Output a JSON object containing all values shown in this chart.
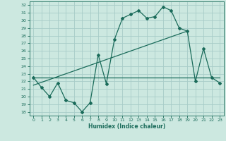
{
  "xlabel": "Humidex (Indice chaleur)",
  "background_color": "#cce8e0",
  "grid_color": "#a8ccc8",
  "line_color": "#1a6b5a",
  "xlim": [
    -0.5,
    23.5
  ],
  "ylim": [
    17.5,
    32.5
  ],
  "xticks": [
    0,
    1,
    2,
    3,
    4,
    5,
    6,
    7,
    8,
    9,
    10,
    11,
    12,
    13,
    14,
    15,
    16,
    17,
    18,
    19,
    20,
    21,
    22,
    23
  ],
  "yticks": [
    18,
    19,
    20,
    21,
    22,
    23,
    24,
    25,
    26,
    27,
    28,
    29,
    30,
    31,
    32
  ],
  "curve_x": [
    0,
    1,
    2,
    3,
    4,
    5,
    6,
    7,
    8,
    9,
    10,
    11,
    12,
    13,
    14,
    15,
    16,
    17,
    18,
    19,
    20,
    21,
    22,
    23
  ],
  "curve_y": [
    22.5,
    21.2,
    20.0,
    21.8,
    19.5,
    19.2,
    18.0,
    19.2,
    25.5,
    21.7,
    27.5,
    30.3,
    30.8,
    31.3,
    30.3,
    30.5,
    31.8,
    31.3,
    29.0,
    28.6,
    22.0,
    26.3,
    22.5,
    21.8
  ],
  "line1_x": [
    0,
    23
  ],
  "line1_y": [
    22.5,
    22.5
  ],
  "line2_x": [
    0,
    19
  ],
  "line2_y": [
    21.5,
    28.6
  ]
}
